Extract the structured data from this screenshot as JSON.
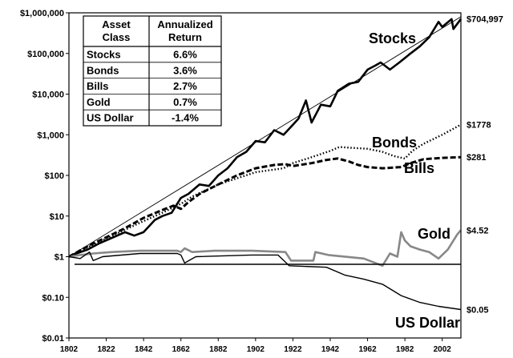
{
  "chart_data": {
    "type": "line",
    "title": "",
    "xlabel": "",
    "ylabel": "",
    "y_scale": "log",
    "xlim": [
      1802,
      2012
    ],
    "ylim": [
      0.01,
      1000000
    ],
    "grid": false,
    "x_ticks": [
      "1802",
      "1822",
      "1842",
      "1862",
      "1882",
      "1902",
      "1922",
      "1942",
      "1962",
      "1982",
      "2002"
    ],
    "y_ticks": [
      {
        "value": 0.01,
        "label": "$0.01"
      },
      {
        "value": 0.1,
        "label": "$0.10"
      },
      {
        "value": 1,
        "label": "$1"
      },
      {
        "value": 10,
        "label": "$10"
      },
      {
        "value": 100,
        "label": "$100"
      },
      {
        "value": 1000,
        "label": "$1,000"
      },
      {
        "value": 10000,
        "label": "$10,000"
      },
      {
        "value": 100000,
        "label": "$100,000"
      },
      {
        "value": 1000000,
        "label": "$1,000,000"
      }
    ],
    "series": [
      {
        "name": "Stocks",
        "end_label": "$704,997",
        "color": "#000000",
        "style": "solid-thick",
        "points": [
          [
            1802,
            1
          ],
          [
            1806,
            1.2
          ],
          [
            1812,
            1.5
          ],
          [
            1818,
            2.1
          ],
          [
            1825,
            2.9
          ],
          [
            1832,
            4
          ],
          [
            1837,
            3.3
          ],
          [
            1842,
            4
          ],
          [
            1848,
            8
          ],
          [
            1852,
            10
          ],
          [
            1857,
            12
          ],
          [
            1862,
            28
          ],
          [
            1866,
            35
          ],
          [
            1872,
            60
          ],
          [
            1877,
            55
          ],
          [
            1882,
            100
          ],
          [
            1887,
            150
          ],
          [
            1892,
            280
          ],
          [
            1897,
            380
          ],
          [
            1902,
            700
          ],
          [
            1907,
            650
          ],
          [
            1912,
            1300
          ],
          [
            1917,
            1000
          ],
          [
            1920,
            1400
          ],
          [
            1925,
            2500
          ],
          [
            1929,
            7000
          ],
          [
            1932,
            2000
          ],
          [
            1937,
            5500
          ],
          [
            1942,
            5000
          ],
          [
            1946,
            12000
          ],
          [
            1952,
            18000
          ],
          [
            1957,
            20000
          ],
          [
            1962,
            40000
          ],
          [
            1966,
            50000
          ],
          [
            1969,
            60000
          ],
          [
            1974,
            40000
          ],
          [
            1979,
            60000
          ],
          [
            1985,
            100000
          ],
          [
            1990,
            150000
          ],
          [
            1995,
            250000
          ],
          [
            2000,
            600000
          ],
          [
            2002,
            450000
          ],
          [
            2007,
            700000
          ],
          [
            2008,
            400000
          ],
          [
            2012,
            704997
          ]
        ]
      },
      {
        "name": "Bonds",
        "end_label": "$1778",
        "color": "#000000",
        "style": "dotted",
        "points": [
          [
            1802,
            1
          ],
          [
            1812,
            1.7
          ],
          [
            1822,
            2.8
          ],
          [
            1832,
            4.6
          ],
          [
            1842,
            7.5
          ],
          [
            1852,
            12
          ],
          [
            1862,
            20
          ],
          [
            1868,
            30
          ],
          [
            1882,
            60
          ],
          [
            1902,
            120
          ],
          [
            1917,
            150
          ],
          [
            1922,
            200
          ],
          [
            1932,
            280
          ],
          [
            1942,
            400
          ],
          [
            1947,
            500
          ],
          [
            1952,
            480
          ],
          [
            1962,
            450
          ],
          [
            1970,
            380
          ],
          [
            1976,
            300
          ],
          [
            1982,
            260
          ],
          [
            1986,
            400
          ],
          [
            1992,
            600
          ],
          [
            2002,
            1000
          ],
          [
            2012,
            1778
          ]
        ]
      },
      {
        "name": "Bills",
        "end_label": "$281",
        "color": "#000000",
        "style": "dashed",
        "points": [
          [
            1802,
            1
          ],
          [
            1812,
            1.8
          ],
          [
            1822,
            3
          ],
          [
            1832,
            5
          ],
          [
            1842,
            9
          ],
          [
            1852,
            14
          ],
          [
            1858,
            18
          ],
          [
            1862,
            15
          ],
          [
            1866,
            22
          ],
          [
            1872,
            35
          ],
          [
            1882,
            60
          ],
          [
            1892,
            100
          ],
          [
            1902,
            150
          ],
          [
            1912,
            180
          ],
          [
            1918,
            190
          ],
          [
            1922,
            170
          ],
          [
            1932,
            200
          ],
          [
            1940,
            240
          ],
          [
            1946,
            260
          ],
          [
            1952,
            220
          ],
          [
            1957,
            180
          ],
          [
            1962,
            160
          ],
          [
            1970,
            150
          ],
          [
            1980,
            160
          ],
          [
            1985,
            200
          ],
          [
            1992,
            250
          ],
          [
            2002,
            270
          ],
          [
            2012,
            281
          ]
        ]
      },
      {
        "name": "Gold",
        "end_label": "$4.52",
        "color": "#888888",
        "style": "solid",
        "points": [
          [
            1802,
            1
          ],
          [
            1808,
            1.1
          ],
          [
            1815,
            1.2
          ],
          [
            1825,
            1.3
          ],
          [
            1840,
            1.4
          ],
          [
            1860,
            1.4
          ],
          [
            1862,
            1.3
          ],
          [
            1864,
            1.6
          ],
          [
            1868,
            1.3
          ],
          [
            1880,
            1.4
          ],
          [
            1900,
            1.4
          ],
          [
            1918,
            1.3
          ],
          [
            1921,
            0.8
          ],
          [
            1933,
            0.8
          ],
          [
            1934,
            1.3
          ],
          [
            1941,
            1.1
          ],
          [
            1960,
            0.9
          ],
          [
            1970,
            0.6
          ],
          [
            1974,
            1.2
          ],
          [
            1978,
            1
          ],
          [
            1980,
            4
          ],
          [
            1982,
            2.5
          ],
          [
            1985,
            1.8
          ],
          [
            1990,
            1.5
          ],
          [
            1995,
            1.3
          ],
          [
            2000,
            0.9
          ],
          [
            2005,
            1.5
          ],
          [
            2010,
            3.5
          ],
          [
            2012,
            4.52
          ]
        ]
      },
      {
        "name": "US Dollar",
        "end_label": "$0.05",
        "color": "#000000",
        "style": "solid-thin",
        "points": [
          [
            1802,
            1
          ],
          [
            1808,
            0.9
          ],
          [
            1813,
            1.3
          ],
          [
            1815,
            0.8
          ],
          [
            1820,
            1
          ],
          [
            1840,
            1.2
          ],
          [
            1860,
            1.2
          ],
          [
            1862,
            1.1
          ],
          [
            1864,
            0.7
          ],
          [
            1870,
            1
          ],
          [
            1900,
            1.1
          ],
          [
            1914,
            1.1
          ],
          [
            1920,
            0.6
          ],
          [
            1940,
            0.55
          ],
          [
            1950,
            0.35
          ],
          [
            1960,
            0.28
          ],
          [
            1970,
            0.21
          ],
          [
            1980,
            0.11
          ],
          [
            1990,
            0.075
          ],
          [
            2000,
            0.06
          ],
          [
            2012,
            0.05
          ]
        ]
      },
      {
        "name": "",
        "color": "#000000",
        "style": "trend",
        "points": [
          [
            1802,
            1
          ],
          [
            2012,
            800000
          ]
        ]
      },
      {
        "name": "",
        "color": "#000000",
        "style": "baseline",
        "points": [
          [
            1805,
            0.65
          ],
          [
            2012,
            0.65
          ]
        ]
      }
    ],
    "table": {
      "headers": [
        [
          "Asset",
          "Class"
        ],
        [
          "Annualized",
          "Return"
        ]
      ],
      "rows": [
        [
          "Stocks",
          "6.6%"
        ],
        [
          "Bonds",
          "3.6%"
        ],
        [
          "Bills",
          "2.7%"
        ],
        [
          "Gold",
          "0.7%"
        ],
        [
          "US Dollar",
          "-1.4%"
        ]
      ]
    }
  }
}
